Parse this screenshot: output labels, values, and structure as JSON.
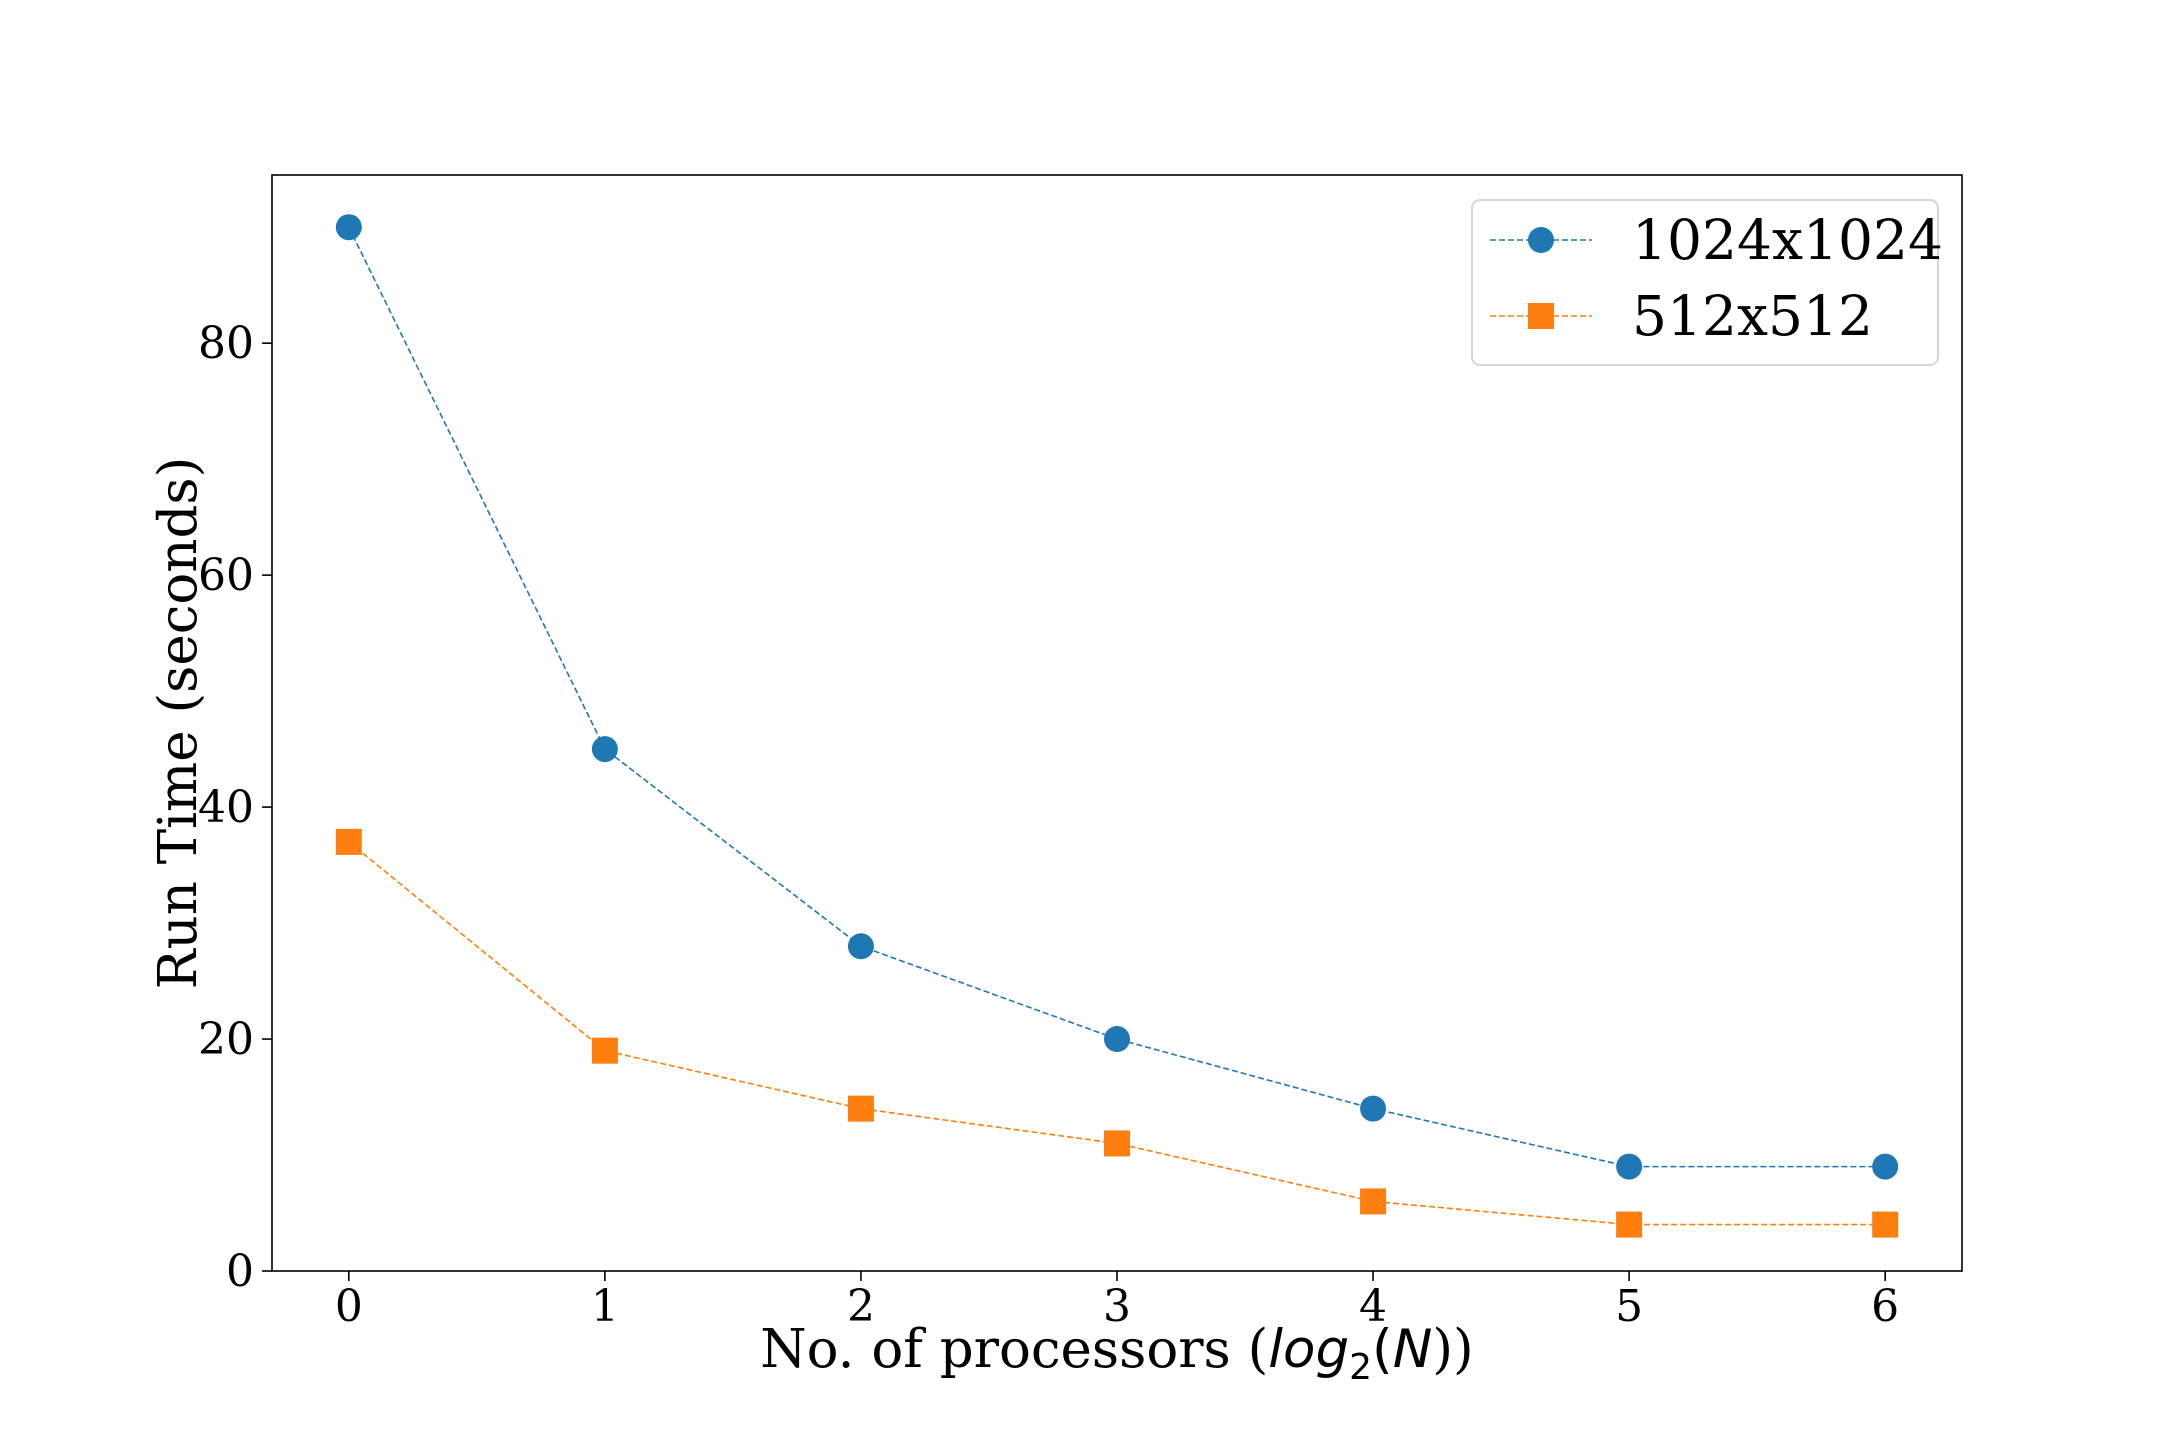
{
  "chart_data": {
    "type": "line",
    "x": [
      0,
      1,
      2,
      3,
      4,
      5,
      6
    ],
    "x_ticks": [
      "0",
      "1",
      "2",
      "3",
      "4",
      "5",
      "6"
    ],
    "y_ticks": [
      "0",
      "20",
      "40",
      "60",
      "80"
    ],
    "xlim": [
      -0.3,
      6.3
    ],
    "ylim": [
      0,
      94.5
    ],
    "xlabel": {
      "prefix": "No. of processors (",
      "log": "log",
      "base": "2",
      "open": "(",
      "var": "N",
      "close": "))"
    },
    "ylabel": "Run Time (seconds)",
    "grid": false,
    "legend_position": "top-right",
    "series": [
      {
        "name": "1024x1024",
        "color": "#1f77b4",
        "marker": "circle",
        "line_style": "dashed",
        "values": [
          90,
          45,
          28,
          20,
          14,
          9,
          9
        ]
      },
      {
        "name": "512x512",
        "color": "#ff7f0e",
        "marker": "square",
        "line_style": "dashed",
        "values": [
          37,
          19,
          14,
          11,
          6,
          4,
          4
        ]
      }
    ]
  }
}
